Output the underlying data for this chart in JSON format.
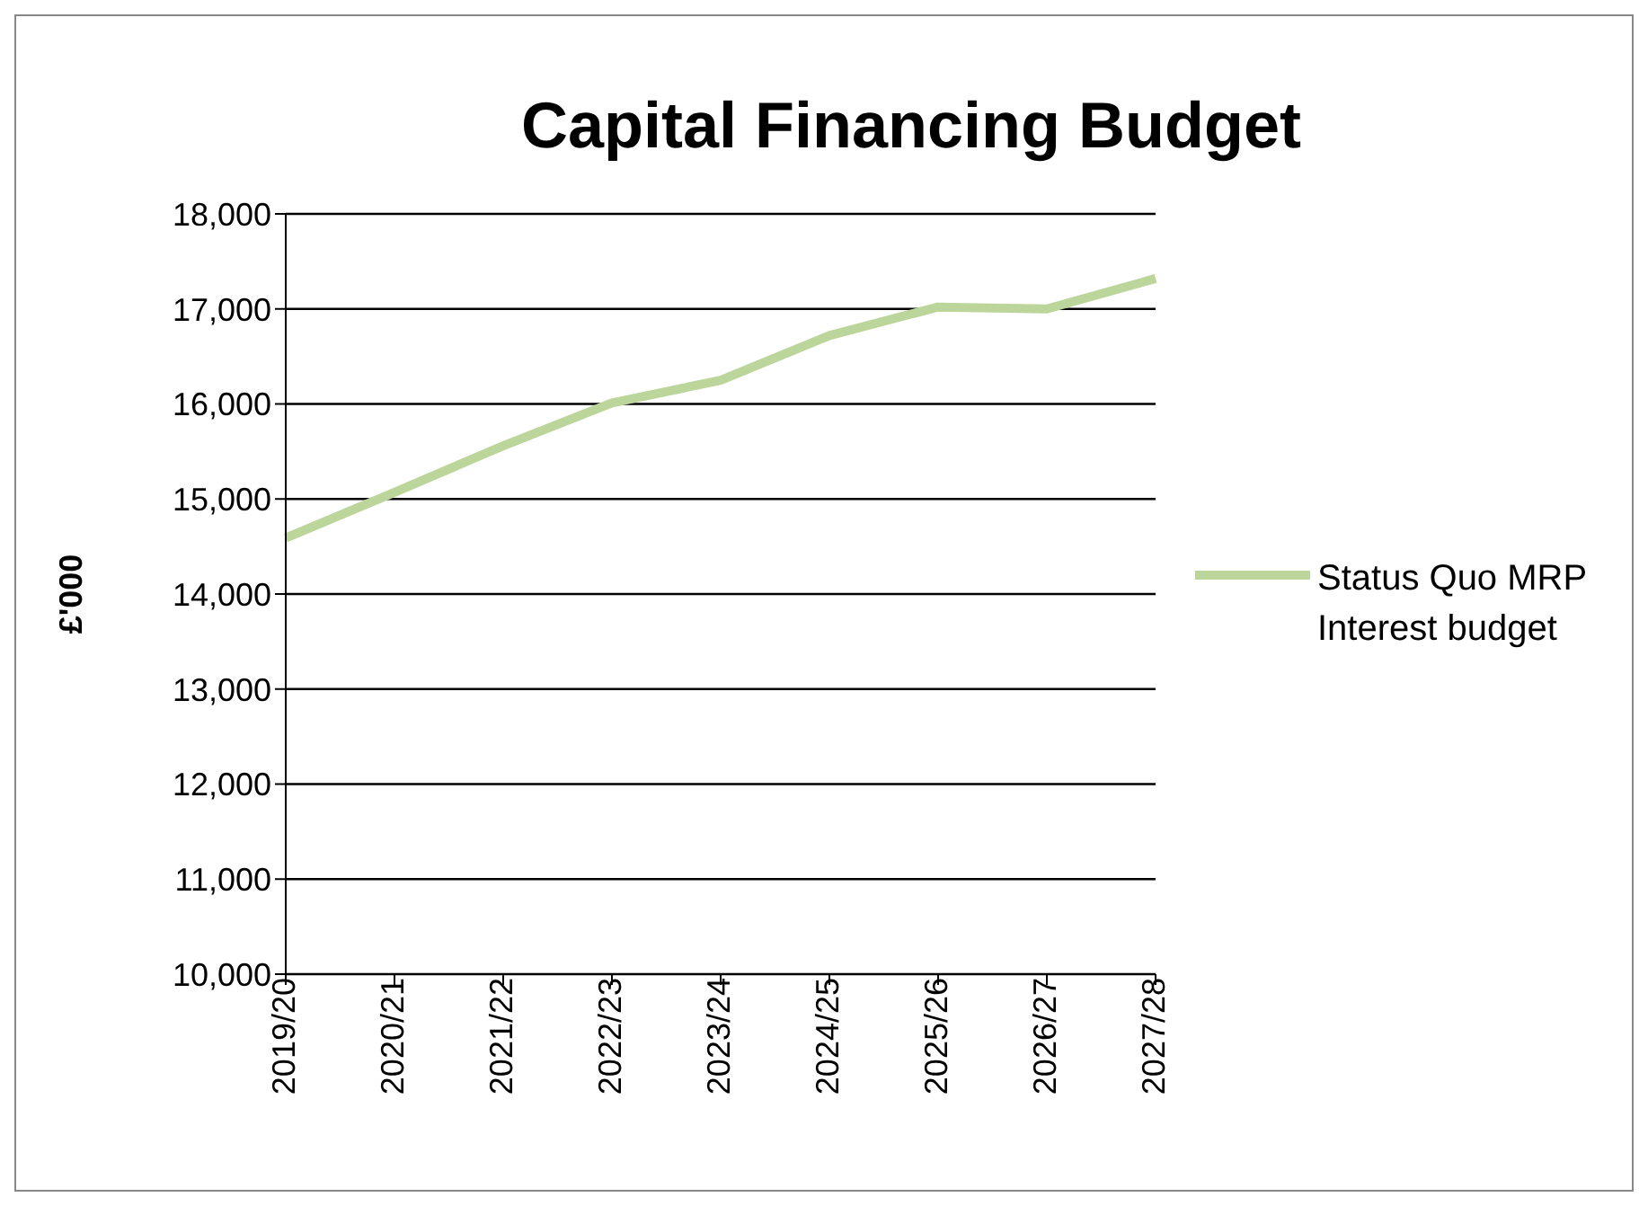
{
  "chart_data": {
    "type": "line",
    "title": "Capital Financing Budget",
    "ylabel": "£'000",
    "categories": [
      "2019/20",
      "2020/21",
      "2021/22",
      "2022/23",
      "2023/24",
      "2024/25",
      "2025/26",
      "2026/27",
      "2027/28"
    ],
    "series": [
      {
        "name": "Status Quo MRP Interest budget",
        "color": "#bcd59b",
        "values": [
          14590,
          15070,
          15560,
          16010,
          16250,
          16720,
          17020,
          17000,
          17320
        ]
      }
    ],
    "ylim": [
      10000,
      18000
    ],
    "yticks": [
      {
        "value": 10000,
        "label": "10,000"
      },
      {
        "value": 11000,
        "label": "11,000"
      },
      {
        "value": 12000,
        "label": "12,000"
      },
      {
        "value": 13000,
        "label": "13,000"
      },
      {
        "value": 14000,
        "label": "14,000"
      },
      {
        "value": 15000,
        "label": "15,000"
      },
      {
        "value": 16000,
        "label": "16,000"
      },
      {
        "value": 17000,
        "label": "17,000"
      },
      {
        "value": 18000,
        "label": "18,000"
      }
    ],
    "grid": "y",
    "legend": "right",
    "marker": "none",
    "line_style": "solid"
  }
}
